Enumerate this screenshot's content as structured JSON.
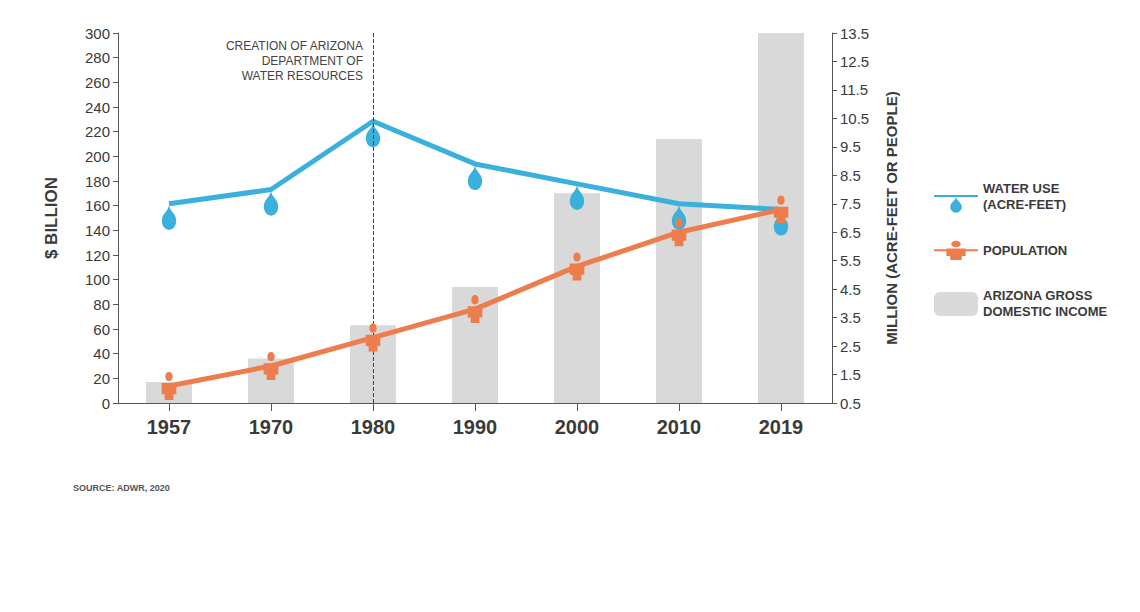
{
  "chart_data": {
    "type": "bar",
    "categories": [
      "1957",
      "1970",
      "1980",
      "1990",
      "2000",
      "2010",
      "2019"
    ],
    "series": [
      {
        "name": "ARIZONA GROSS DOMESTIC INCOME",
        "type": "bar",
        "color": "#d9d9d9",
        "values": [
          17,
          36,
          63,
          94,
          170,
          214,
          300
        ]
      },
      {
        "name": "WATER USE (ACRE-FEET)",
        "type": "line",
        "color": "#3ab0dc",
        "marker": "drop",
        "axis": "y2",
        "values": [
          7.5,
          8.0,
          10.4,
          8.9,
          8.2,
          7.5,
          7.3
        ]
      },
      {
        "name": "POPULATION",
        "type": "line",
        "color": "#ee7d4e",
        "marker": "person",
        "axis": "y2",
        "values": [
          1.1,
          1.8,
          2.8,
          3.8,
          5.3,
          6.5,
          7.3
        ]
      }
    ],
    "ylabel": "$ BILLION",
    "y2label": "MILLION (ACRE-FEET OR PEOPLE)",
    "ylim": [
      0,
      300
    ],
    "yticks": [
      0,
      20,
      40,
      60,
      80,
      100,
      120,
      140,
      160,
      180,
      200,
      220,
      240,
      260,
      280,
      300
    ],
    "y2lim": [
      0.5,
      13.5
    ],
    "y2ticks": [
      0.5,
      1.5,
      2.5,
      3.5,
      4.5,
      5.5,
      6.5,
      7.5,
      8.5,
      9.5,
      10.5,
      11.5,
      12.5,
      13.5
    ],
    "grid": false,
    "legend": "right",
    "annotation": {
      "lines": [
        "CREATION OF ARIZONA",
        "DEPARTMENT OF",
        "WATER RESOURCES"
      ],
      "x": "1980"
    },
    "source": "SOURCE: ADWR, 2020"
  }
}
